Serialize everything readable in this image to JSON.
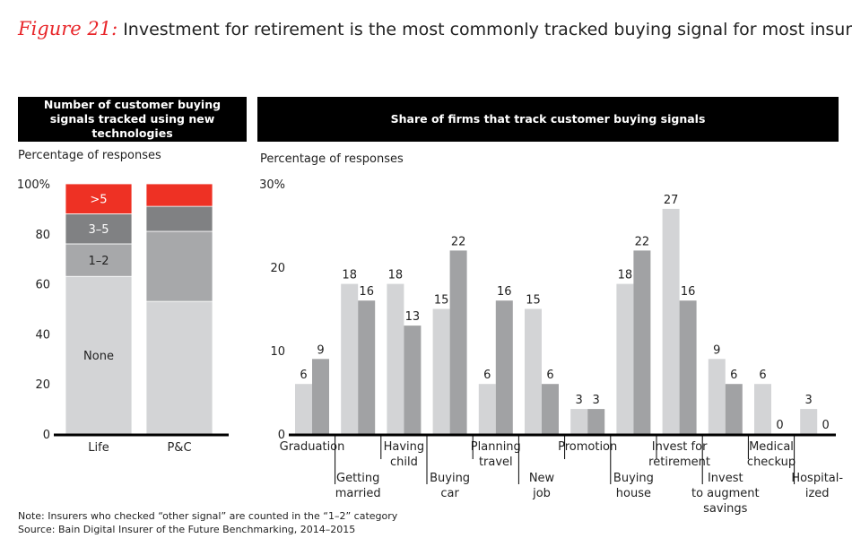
{
  "title": {
    "figure": "Figure 21:",
    "text": "Investment for retirement is the most commonly tracked buying signal for most insurers"
  },
  "left_header": "Number of customer buying signals tracked using new technologies",
  "right_header": "Share of firms that track customer buying signals",
  "footnote": "Note: Insurers who checked “other signal” are counted in the “1–2” category",
  "source": "Source: Bain Digital Insurer of the Future Benchmarking, 2014–2015",
  "colors": {
    "none": "#d3d4d6",
    "one_two": "#a7a8aa",
    "three_five": "#808183",
    "gt5": "#ee3124",
    "light": "#d3d4d6",
    "dark": "#a1a2a4"
  },
  "chart_data": [
    {
      "type": "bar",
      "stacked": true,
      "ylabel": "Percentage of responses",
      "ylim": [
        0,
        100
      ],
      "yticks": [
        "0",
        "20",
        "40",
        "60",
        "80",
        "100%"
      ],
      "categories": [
        "Life",
        "P&C"
      ],
      "series": [
        {
          "name": "None",
          "values": [
            63,
            53
          ]
        },
        {
          "name": "1–2",
          "values": [
            13,
            28
          ]
        },
        {
          "name": "3–5",
          "values": [
            12,
            10
          ]
        },
        {
          "name": ">5",
          "values": [
            12,
            9
          ]
        }
      ]
    },
    {
      "type": "bar",
      "ylabel": "Percentage of responses",
      "ylim": [
        0,
        30
      ],
      "yticks": [
        "0",
        "10",
        "20",
        "30%"
      ],
      "categories": [
        "Graduation",
        "Getting married",
        "Having child",
        "Buying car",
        "Planning travel",
        "New job",
        "Promotion",
        "Buying house",
        "Invest for retirement",
        "Invest to augment savings",
        "Medical checkup",
        "Hospitalized"
      ],
      "category_labels": [
        [
          "Graduation"
        ],
        [
          "Getting",
          "married"
        ],
        [
          "Having",
          "child"
        ],
        [
          "Buying",
          "car"
        ],
        [
          "Planning",
          "travel"
        ],
        [
          "New",
          "job"
        ],
        [
          "Promotion"
        ],
        [
          "Buying",
          "house"
        ],
        [
          "Invest for",
          "retirement"
        ],
        [
          "Invest",
          "to augment",
          "savings"
        ],
        [
          "Medical",
          "checkup"
        ],
        [
          "Hospital-",
          "ized"
        ]
      ],
      "series": [
        {
          "values": [
            6,
            18,
            18,
            15,
            6,
            15,
            3,
            18,
            27,
            9,
            6,
            3
          ]
        },
        {
          "values": [
            9,
            16,
            13,
            22,
            16,
            6,
            3,
            22,
            16,
            6,
            0,
            0
          ]
        }
      ]
    }
  ]
}
